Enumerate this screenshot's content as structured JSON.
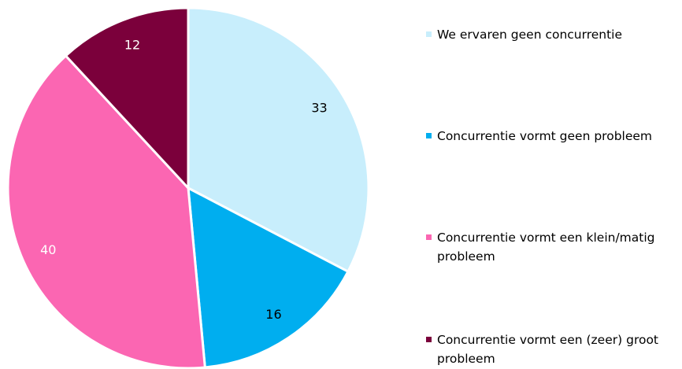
{
  "chart_data": {
    "type": "pie",
    "categories": [
      "We ervaren geen concurrentie",
      "Concurrentie vormt geen probleem",
      "Concurrentie vormt een klein/matig probleem",
      "Concurrentie vormt een (zeer) groot probleem"
    ],
    "values": [
      33,
      16,
      40,
      12
    ],
    "colors": [
      "#c8eefc",
      "#00aeef",
      "#fb66b2",
      "#7b003b"
    ],
    "label_colors": [
      "#000000",
      "#000000",
      "#ffffff",
      "#ffffff"
    ]
  }
}
